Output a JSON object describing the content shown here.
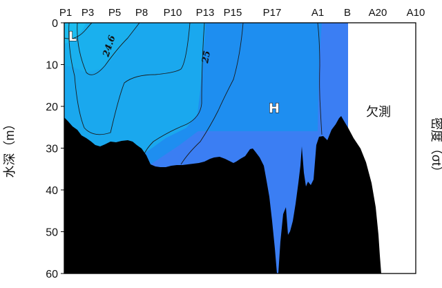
{
  "chart_data": {
    "type": "heatmap",
    "stations": [
      "P1",
      "P3",
      "P5",
      "P8",
      "P10",
      "P13",
      "P15",
      "P17",
      "A1",
      "B",
      "A20",
      "A10"
    ],
    "ylabel": "水深（m）",
    "right_label": "密度（σt）",
    "y_ticks": [
      "0",
      "10",
      "20",
      "30",
      "40",
      "50",
      "60"
    ],
    "ylim": [
      0,
      60
    ],
    "y_reversed": true,
    "contour_labels": [
      "24.6",
      "25"
    ],
    "regions": {
      "low": "L",
      "high": "H",
      "no_data": "欠測"
    },
    "colors": {
      "lowest": "#1fc6f2",
      "low": "#1aa8ee",
      "mid": "#1e8ef0",
      "high": "#3b7ef3",
      "seafloor": "#000000"
    }
  }
}
